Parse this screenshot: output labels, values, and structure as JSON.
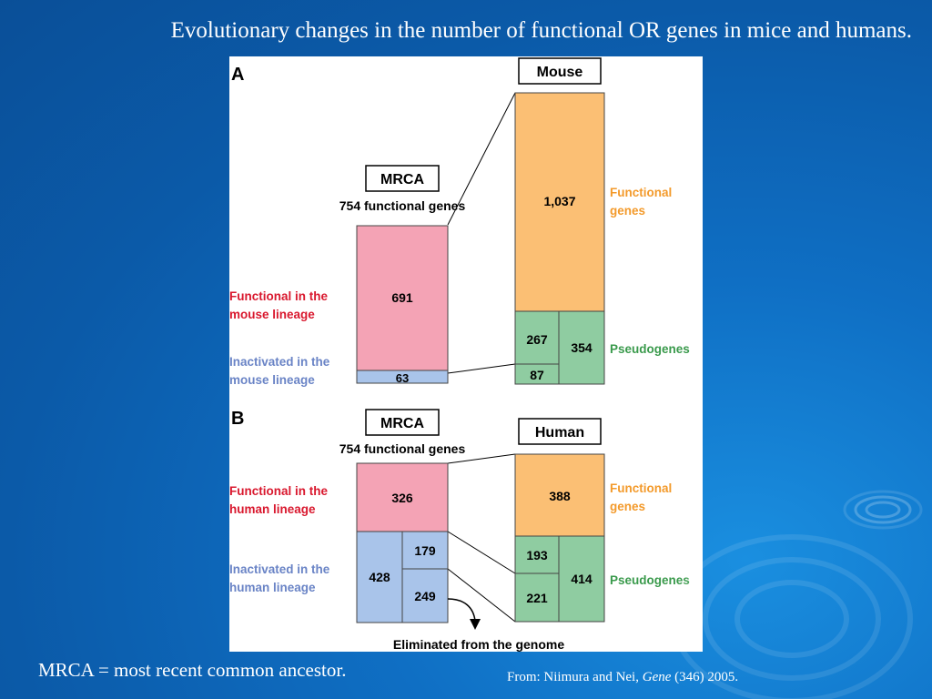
{
  "title": "Evolutionary changes in the number of functional OR genes in mice and humans.",
  "figure": {
    "panel_a": {
      "letter": "A",
      "mrca_box": "MRCA",
      "mrca_subtitle": "754 functional genes",
      "species_box": "Mouse",
      "mrca_functional": "691",
      "mrca_inactivated": "63",
      "species_functional": "1,037",
      "pseudo_left_top": "267",
      "pseudo_left_bottom": "87",
      "pseudo_total": "354",
      "label_functional_lineage": [
        "Functional in the",
        "mouse lineage"
      ],
      "label_inactivated_lineage": [
        "Inactivated in the",
        "mouse lineage"
      ],
      "label_functional_genes": [
        "Functional",
        "genes"
      ],
      "label_pseudogenes": "Pseudogenes"
    },
    "panel_b": {
      "letter": "B",
      "mrca_box": "MRCA",
      "mrca_subtitle": "754 functional genes",
      "species_box": "Human",
      "mrca_functional": "326",
      "mrca_inactivated": "428",
      "inactivated_top": "179",
      "inactivated_bottom": "249",
      "species_functional": "388",
      "pseudo_left_top": "193",
      "pseudo_left_bottom": "221",
      "pseudo_total": "414",
      "label_functional_lineage": [
        "Functional in the",
        "human lineage"
      ],
      "label_inactivated_lineage": [
        "Inactivated in the",
        "human lineage"
      ],
      "label_functional_genes": [
        "Functional",
        "genes"
      ],
      "label_pseudogenes": "Pseudogenes",
      "eliminated": "Eliminated from the genome"
    },
    "colors": {
      "pink": "#f4a3b5",
      "blue": "#a9c4ea",
      "orange": "#fbbf74",
      "green": "#8fcca1",
      "label_red": "#d9182e",
      "label_blue": "#6a84c6",
      "label_orange": "#f39a2b",
      "label_green": "#3a9a4c"
    }
  },
  "footer": {
    "left": "MRCA = most recent common ancestor.",
    "right_prefix": "From: Niimura and Nei, ",
    "right_journal": "Gene",
    "right_suffix": " (346) 2005."
  }
}
